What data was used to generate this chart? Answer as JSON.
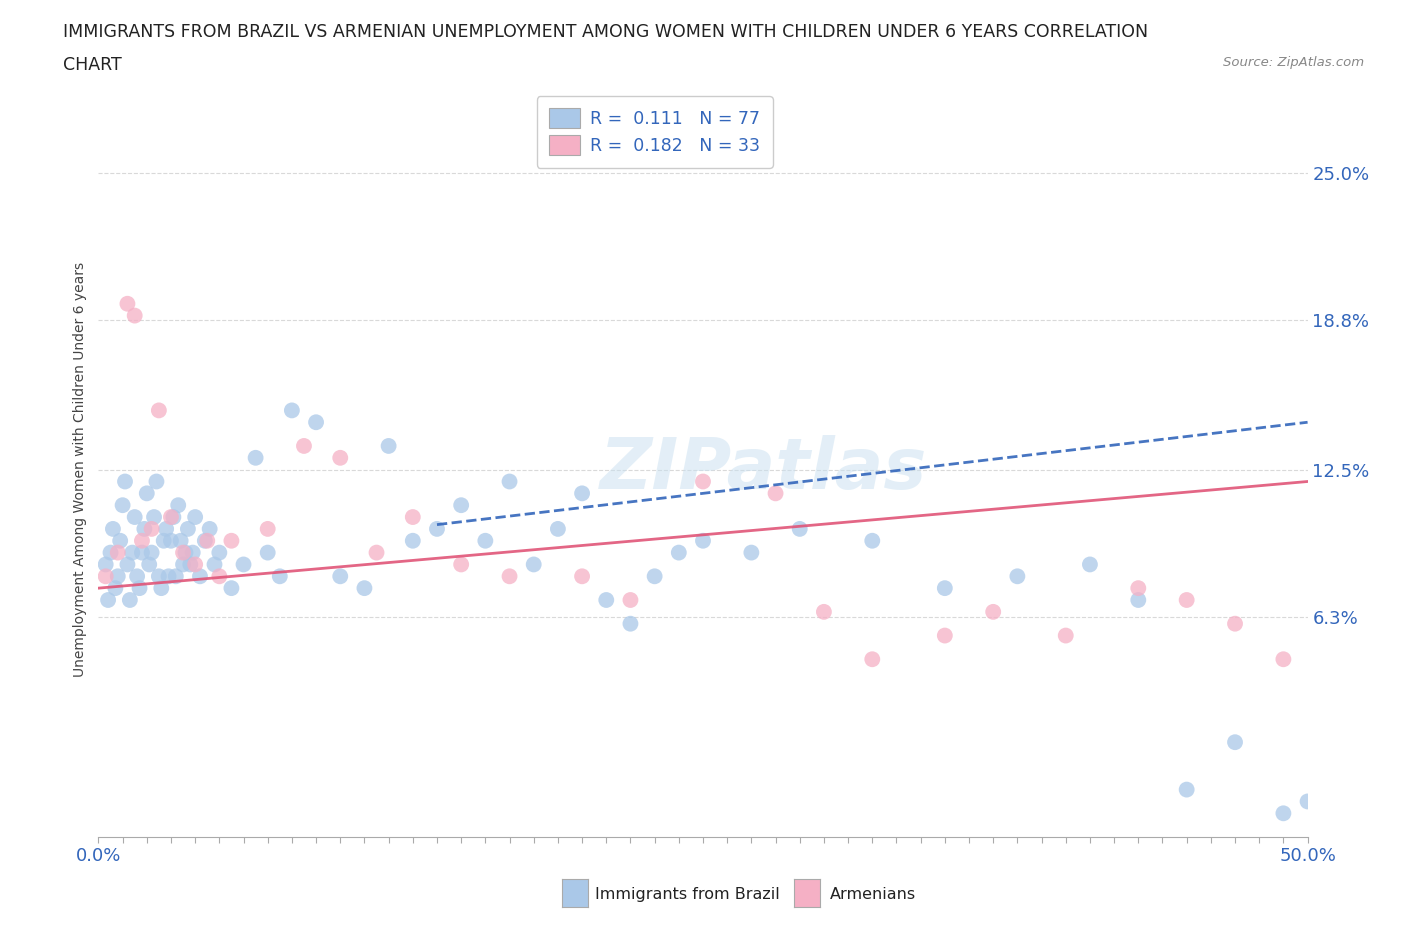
{
  "title_line1": "IMMIGRANTS FROM BRAZIL VS ARMENIAN UNEMPLOYMENT AMONG WOMEN WITH CHILDREN UNDER 6 YEARS CORRELATION",
  "title_line2": "CHART",
  "source_text": "Source: ZipAtlas.com",
  "ylabel": "Unemployment Among Women with Children Under 6 years",
  "xlim": [
    0,
    50
  ],
  "ylim": [
    -3,
    28
  ],
  "yticks_right": [
    6.3,
    12.5,
    18.8,
    25.0
  ],
  "ytick_labels_right": [
    "6.3%",
    "12.5%",
    "18.8%",
    "25.0%"
  ],
  "grid_color": "#d0d0d0",
  "background_color": "#ffffff",
  "brazil_color": "#aac8e8",
  "armenia_color": "#f5b0c5",
  "brazil_line_color": "#3366bb",
  "armenia_line_color": "#e05578",
  "brazil_line_style": "--",
  "armenia_line_style": "-",
  "legend_R1": "0.111",
  "legend_N1": "77",
  "legend_R2": "0.182",
  "legend_N2": "33",
  "legend_label1": "Immigrants from Brazil",
  "legend_label2": "Armenians",
  "watermark": "ZIPatlas",
  "brazil_trend_x0": 0,
  "brazil_trend_y0": 8.5,
  "brazil_trend_x1": 50,
  "brazil_trend_y1": 14.5,
  "armenia_trend_x0": 0,
  "armenia_trend_y0": 7.5,
  "armenia_trend_x1": 50,
  "armenia_trend_y1": 12.0,
  "brazil_x": [
    0.3,
    0.4,
    0.5,
    0.6,
    0.7,
    0.8,
    0.9,
    1.0,
    1.1,
    1.2,
    1.3,
    1.4,
    1.5,
    1.6,
    1.7,
    1.8,
    1.9,
    2.0,
    2.1,
    2.2,
    2.3,
    2.4,
    2.5,
    2.6,
    2.7,
    2.8,
    2.9,
    3.0,
    3.1,
    3.2,
    3.3,
    3.4,
    3.5,
    3.6,
    3.7,
    3.8,
    3.9,
    4.0,
    4.2,
    4.4,
    4.6,
    4.8,
    5.0,
    5.5,
    6.0,
    6.5,
    7.0,
    7.5,
    8.0,
    9.0,
    10.0,
    11.0,
    12.0,
    13.0,
    14.0,
    15.0,
    16.0,
    17.0,
    18.0,
    19.0,
    20.0,
    21.0,
    22.0,
    23.0,
    24.0,
    25.0,
    27.0,
    29.0,
    32.0,
    35.0,
    38.0,
    41.0,
    43.0,
    45.0,
    47.0,
    49.0,
    50.0
  ],
  "brazil_y": [
    8.5,
    7.0,
    9.0,
    10.0,
    7.5,
    8.0,
    9.5,
    11.0,
    12.0,
    8.5,
    7.0,
    9.0,
    10.5,
    8.0,
    7.5,
    9.0,
    10.0,
    11.5,
    8.5,
    9.0,
    10.5,
    12.0,
    8.0,
    7.5,
    9.5,
    10.0,
    8.0,
    9.5,
    10.5,
    8.0,
    11.0,
    9.5,
    8.5,
    9.0,
    10.0,
    8.5,
    9.0,
    10.5,
    8.0,
    9.5,
    10.0,
    8.5,
    9.0,
    7.5,
    8.5,
    13.0,
    9.0,
    8.0,
    15.0,
    14.5,
    8.0,
    7.5,
    13.5,
    9.5,
    10.0,
    11.0,
    9.5,
    12.0,
    8.5,
    10.0,
    11.5,
    7.0,
    6.0,
    8.0,
    9.0,
    9.5,
    9.0,
    10.0,
    9.5,
    7.5,
    8.0,
    8.5,
    7.0,
    -1.0,
    1.0,
    -2.0,
    -1.5
  ],
  "armenia_x": [
    0.3,
    0.8,
    1.2,
    1.5,
    1.8,
    2.2,
    2.5,
    3.0,
    3.5,
    4.0,
    4.5,
    5.0,
    5.5,
    7.0,
    8.5,
    10.0,
    11.5,
    13.0,
    15.0,
    17.0,
    20.0,
    22.0,
    25.0,
    28.0,
    30.0,
    32.0,
    35.0,
    37.0,
    40.0,
    43.0,
    45.0,
    47.0,
    49.0
  ],
  "armenia_y": [
    8.0,
    9.0,
    19.5,
    19.0,
    9.5,
    10.0,
    15.0,
    10.5,
    9.0,
    8.5,
    9.5,
    8.0,
    9.5,
    10.0,
    13.5,
    13.0,
    9.0,
    10.5,
    8.5,
    8.0,
    8.0,
    7.0,
    12.0,
    11.5,
    6.5,
    4.5,
    5.5,
    6.5,
    5.5,
    7.5,
    7.0,
    6.0,
    4.5
  ]
}
